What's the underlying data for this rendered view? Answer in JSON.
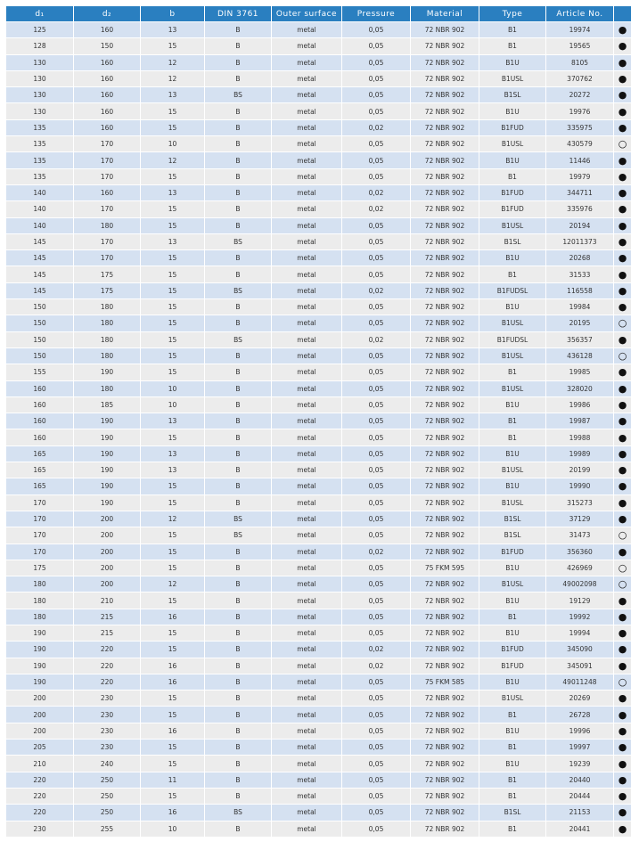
{
  "table": {
    "columns": [
      "d₁",
      "d₂",
      "b",
      "DIN 3761",
      "Outer surface",
      "Pressure",
      "Material",
      "Type",
      "Article No.",
      ""
    ],
    "rows": [
      [
        "125",
        "160",
        "13",
        "B",
        "metal",
        "0,05",
        "72 NBR 902",
        "B1",
        "19974",
        "●"
      ],
      [
        "128",
        "150",
        "15",
        "B",
        "metal",
        "0,05",
        "72 NBR 902",
        "B1",
        "19565",
        "●"
      ],
      [
        "130",
        "160",
        "12",
        "B",
        "metal",
        "0,05",
        "72 NBR 902",
        "B1U",
        "8105",
        "●"
      ],
      [
        "130",
        "160",
        "12",
        "B",
        "metal",
        "0,05",
        "72 NBR 902",
        "B1USL",
        "370762",
        "●"
      ],
      [
        "130",
        "160",
        "13",
        "BS",
        "metal",
        "0,05",
        "72 NBR 902",
        "B1SL",
        "20272",
        "●"
      ],
      [
        "130",
        "160",
        "15",
        "B",
        "metal",
        "0,05",
        "72 NBR 902",
        "B1U",
        "19976",
        "●"
      ],
      [
        "135",
        "160",
        "15",
        "B",
        "metal",
        "0,02",
        "72 NBR 902",
        "B1FUD",
        "335975",
        "●"
      ],
      [
        "135",
        "170",
        "10",
        "B",
        "metal",
        "0,05",
        "72 NBR 902",
        "B1USL",
        "430579",
        "○"
      ],
      [
        "135",
        "170",
        "12",
        "B",
        "metal",
        "0,05",
        "72 NBR 902",
        "B1U",
        "11446",
        "●"
      ],
      [
        "135",
        "170",
        "15",
        "B",
        "metal",
        "0,05",
        "72 NBR 902",
        "B1",
        "19979",
        "●"
      ],
      [
        "140",
        "160",
        "13",
        "B",
        "metal",
        "0,02",
        "72 NBR 902",
        "B1FUD",
        "344711",
        "●"
      ],
      [
        "140",
        "170",
        "15",
        "B",
        "metal",
        "0,02",
        "72 NBR 902",
        "B1FUD",
        "335976",
        "●"
      ],
      [
        "140",
        "180",
        "15",
        "B",
        "metal",
        "0,05",
        "72 NBR 902",
        "B1USL",
        "20194",
        "●"
      ],
      [
        "145",
        "170",
        "13",
        "BS",
        "metal",
        "0,05",
        "72 NBR 902",
        "B1SL",
        "12011373",
        "●"
      ],
      [
        "145",
        "170",
        "15",
        "B",
        "metal",
        "0,05",
        "72 NBR 902",
        "B1U",
        "20268",
        "●"
      ],
      [
        "145",
        "175",
        "15",
        "B",
        "metal",
        "0,05",
        "72 NBR 902",
        "B1",
        "31533",
        "●"
      ],
      [
        "145",
        "175",
        "15",
        "BS",
        "metal",
        "0,02",
        "72 NBR 902",
        "B1FUDSL",
        "116558",
        "●"
      ],
      [
        "150",
        "180",
        "15",
        "B",
        "metal",
        "0,05",
        "72 NBR 902",
        "B1U",
        "19984",
        "●"
      ],
      [
        "150",
        "180",
        "15",
        "B",
        "metal",
        "0,05",
        "72 NBR 902",
        "B1USL",
        "20195",
        "○"
      ],
      [
        "150",
        "180",
        "15",
        "BS",
        "metal",
        "0,02",
        "72 NBR 902",
        "B1FUDSL",
        "356357",
        "●"
      ],
      [
        "150",
        "180",
        "15",
        "B",
        "metal",
        "0,05",
        "72 NBR 902",
        "B1USL",
        "436128",
        "○"
      ],
      [
        "155",
        "190",
        "15",
        "B",
        "metal",
        "0,05",
        "72 NBR 902",
        "B1",
        "19985",
        "●"
      ],
      [
        "160",
        "180",
        "10",
        "B",
        "metal",
        "0,05",
        "72 NBR 902",
        "B1USL",
        "328020",
        "●"
      ],
      [
        "160",
        "185",
        "10",
        "B",
        "metal",
        "0,05",
        "72 NBR 902",
        "B1U",
        "19986",
        "●"
      ],
      [
        "160",
        "190",
        "13",
        "B",
        "metal",
        "0,05",
        "72 NBR 902",
        "B1",
        "19987",
        "●"
      ],
      [
        "160",
        "190",
        "15",
        "B",
        "metal",
        "0,05",
        "72 NBR 902",
        "B1",
        "19988",
        "●"
      ],
      [
        "165",
        "190",
        "13",
        "B",
        "metal",
        "0,05",
        "72 NBR 902",
        "B1U",
        "19989",
        "●"
      ],
      [
        "165",
        "190",
        "13",
        "B",
        "metal",
        "0,05",
        "72 NBR 902",
        "B1USL",
        "20199",
        "●"
      ],
      [
        "165",
        "190",
        "15",
        "B",
        "metal",
        "0,05",
        "72 NBR 902",
        "B1U",
        "19990",
        "●"
      ],
      [
        "170",
        "190",
        "15",
        "B",
        "metal",
        "0,05",
        "72 NBR 902",
        "B1USL",
        "315273",
        "●"
      ],
      [
        "170",
        "200",
        "12",
        "BS",
        "metal",
        "0,05",
        "72 NBR 902",
        "B1SL",
        "37129",
        "●"
      ],
      [
        "170",
        "200",
        "15",
        "BS",
        "metal",
        "0,05",
        "72 NBR 902",
        "B1SL",
        "31473",
        "○"
      ],
      [
        "170",
        "200",
        "15",
        "B",
        "metal",
        "0,02",
        "72 NBR 902",
        "B1FUD",
        "356360",
        "●"
      ],
      [
        "175",
        "200",
        "15",
        "B",
        "metal",
        "0,05",
        "75 FKM 595",
        "B1U",
        "426969",
        "○"
      ],
      [
        "180",
        "200",
        "12",
        "B",
        "metal",
        "0,05",
        "72 NBR 902",
        "B1USL",
        "49002098",
        "○"
      ],
      [
        "180",
        "210",
        "15",
        "B",
        "metal",
        "0,05",
        "72 NBR 902",
        "B1U",
        "19129",
        "●"
      ],
      [
        "180",
        "215",
        "16",
        "B",
        "metal",
        "0,05",
        "72 NBR 902",
        "B1",
        "19992",
        "●"
      ],
      [
        "190",
        "215",
        "15",
        "B",
        "metal",
        "0,05",
        "72 NBR 902",
        "B1U",
        "19994",
        "●"
      ],
      [
        "190",
        "220",
        "15",
        "B",
        "metal",
        "0,02",
        "72 NBR 902",
        "B1FUD",
        "345090",
        "●"
      ],
      [
        "190",
        "220",
        "16",
        "B",
        "metal",
        "0,02",
        "72 NBR 902",
        "B1FUD",
        "345091",
        "●"
      ],
      [
        "190",
        "220",
        "16",
        "B",
        "metal",
        "0,05",
        "75 FKM 585",
        "B1U",
        "49011248",
        "○"
      ],
      [
        "200",
        "230",
        "15",
        "B",
        "metal",
        "0,05",
        "72 NBR 902",
        "B1USL",
        "20269",
        "●"
      ],
      [
        "200",
        "230",
        "15",
        "B",
        "metal",
        "0,05",
        "72 NBR 902",
        "B1",
        "26728",
        "●"
      ],
      [
        "200",
        "230",
        "16",
        "B",
        "metal",
        "0,05",
        "72 NBR 902",
        "B1U",
        "19996",
        "●"
      ],
      [
        "205",
        "230",
        "15",
        "B",
        "metal",
        "0,05",
        "72 NBR 902",
        "B1",
        "19997",
        "●"
      ],
      [
        "210",
        "240",
        "15",
        "B",
        "metal",
        "0,05",
        "72 NBR 902",
        "B1U",
        "19239",
        "●"
      ],
      [
        "220",
        "250",
        "11",
        "B",
        "metal",
        "0,05",
        "72 NBR 902",
        "B1",
        "20440",
        "●"
      ],
      [
        "220",
        "250",
        "15",
        "B",
        "metal",
        "0,05",
        "72 NBR 902",
        "B1",
        "20444",
        "●"
      ],
      [
        "220",
        "250",
        "16",
        "BS",
        "metal",
        "0,05",
        "72 NBR 902",
        "B1SL",
        "21153",
        "●"
      ],
      [
        "230",
        "255",
        "10",
        "B",
        "metal",
        "0,05",
        "72 NBR 902",
        "B1",
        "20441",
        "●"
      ]
    ]
  }
}
